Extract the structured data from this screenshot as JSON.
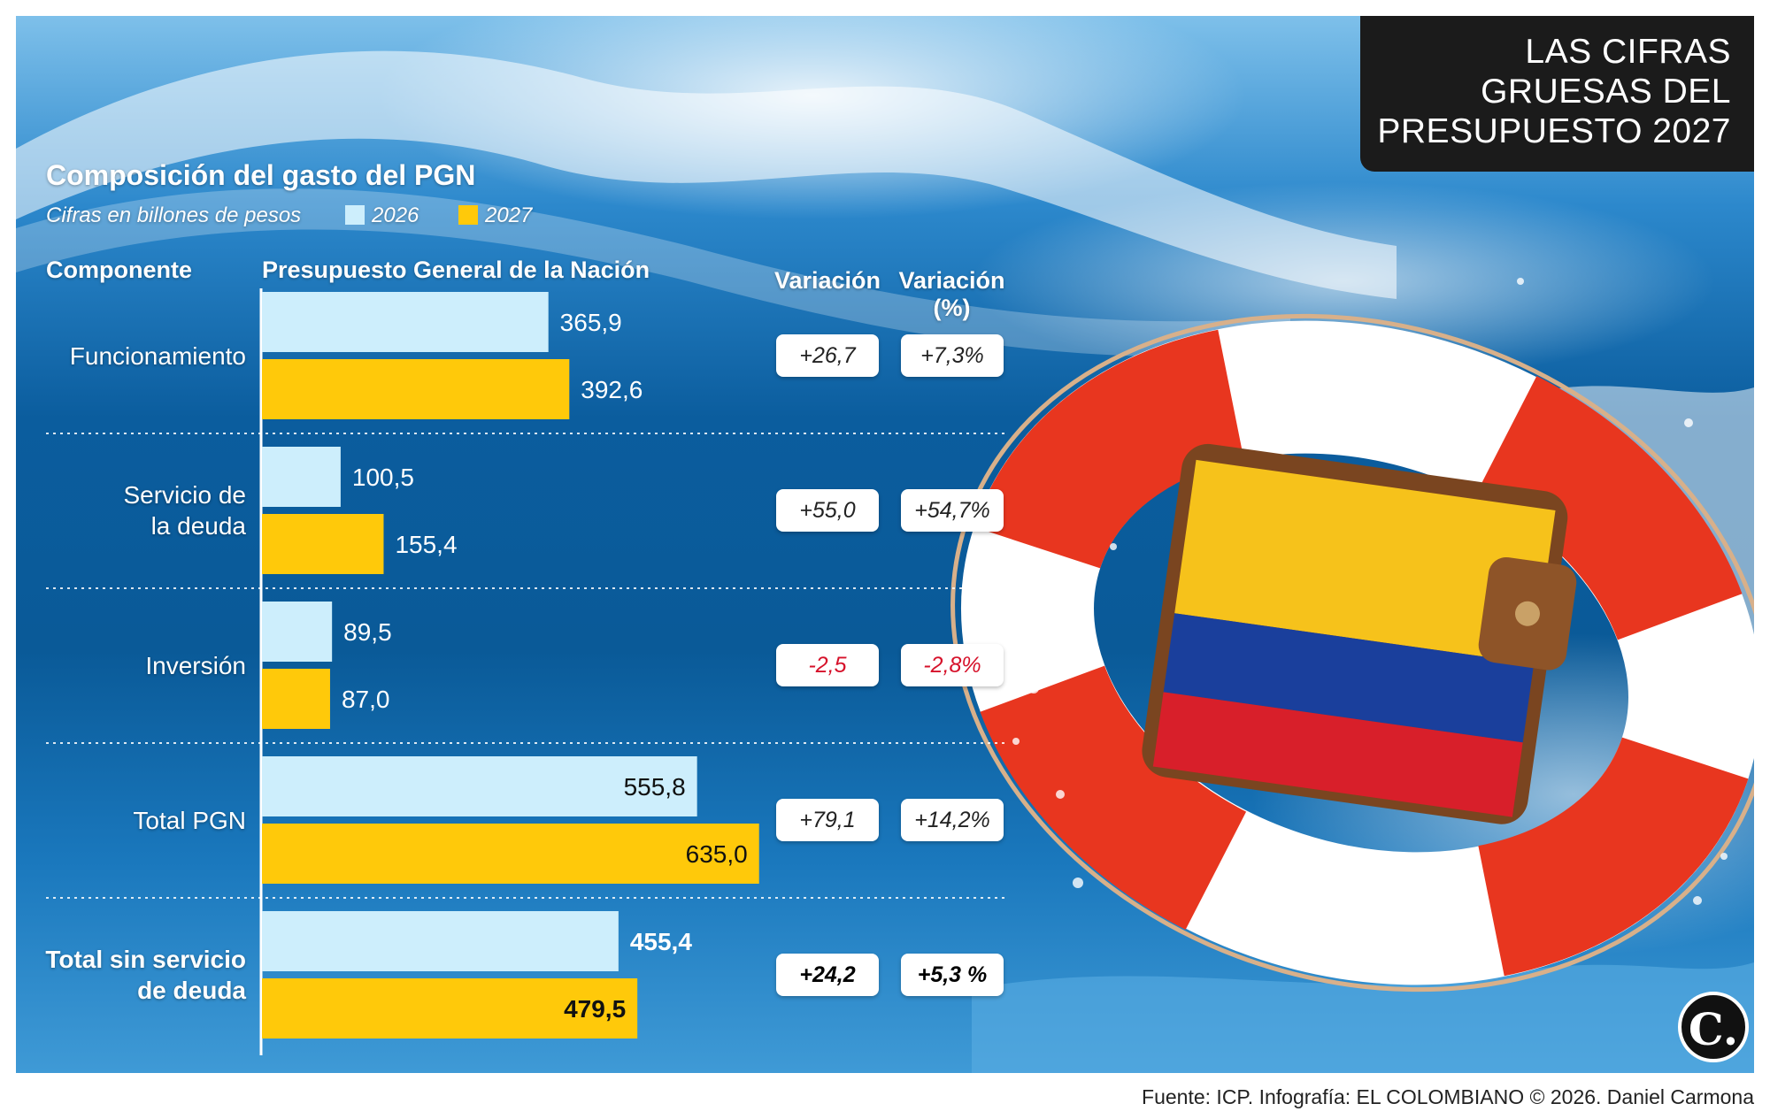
{
  "header": {
    "title_lines": [
      "LAS CIFRAS",
      "GRUESAS DEL",
      "PRESUPUESTO 2027"
    ]
  },
  "chart_title": "Composición del gasto del PGN",
  "subtitle": "Cifras en billones de pesos",
  "legend": [
    {
      "label": "2026",
      "color": "#cdeefc"
    },
    {
      "label": "2027",
      "color": "#ffc90a"
    }
  ],
  "columns": {
    "component": "Componente",
    "pgn": "Presupuesto General de la Nación",
    "variation": "Variación",
    "variation_pct_line1": "Variación",
    "variation_pct_line2": "(%)"
  },
  "chart_data": {
    "type": "bar",
    "orientation": "horizontal",
    "title": "Composición del gasto del PGN",
    "subtitle": "Cifras en billones de pesos",
    "categories": [
      "Funcionamiento",
      "Servicio de la deuda",
      "Inversión",
      "Total PGN",
      "Total sin servicio de deuda"
    ],
    "category_lines": [
      [
        "Funcionamiento"
      ],
      [
        "Servicio de",
        "la deuda"
      ],
      [
        "Inversión"
      ],
      [
        "Total PGN"
      ],
      [
        "Total sin servicio",
        "de deuda"
      ]
    ],
    "series": [
      {
        "name": "2026",
        "values": [
          365.9,
          100.5,
          89.5,
          555.8,
          455.4
        ],
        "labels": [
          "365,9",
          "100,5",
          "89,5",
          "555,8",
          "455,4"
        ]
      },
      {
        "name": "2027",
        "values": [
          392.6,
          155.4,
          87.0,
          635.0,
          479.5
        ],
        "labels": [
          "392,6",
          "155,4",
          "87,0",
          "635,0",
          "479,5"
        ]
      }
    ],
    "variation": [
      "+26,7",
      "+55,0",
      "-2,5",
      "+79,1",
      "+24,2"
    ],
    "variation_pct": [
      "+7,3%",
      "+54,7%",
      "-2,8%",
      "+14,2%",
      "+5,3 %"
    ],
    "legend_position": "top",
    "grid": false
  },
  "colors": {
    "bar_2026": "#cdeefc",
    "bar_2027": "#ffc90a",
    "negative": "#d6112a"
  },
  "footer": "Fuente: ICP. Infografía: EL COLOMBIANO © 2026. Daniel Carmona",
  "logo": {
    "text": "C."
  }
}
